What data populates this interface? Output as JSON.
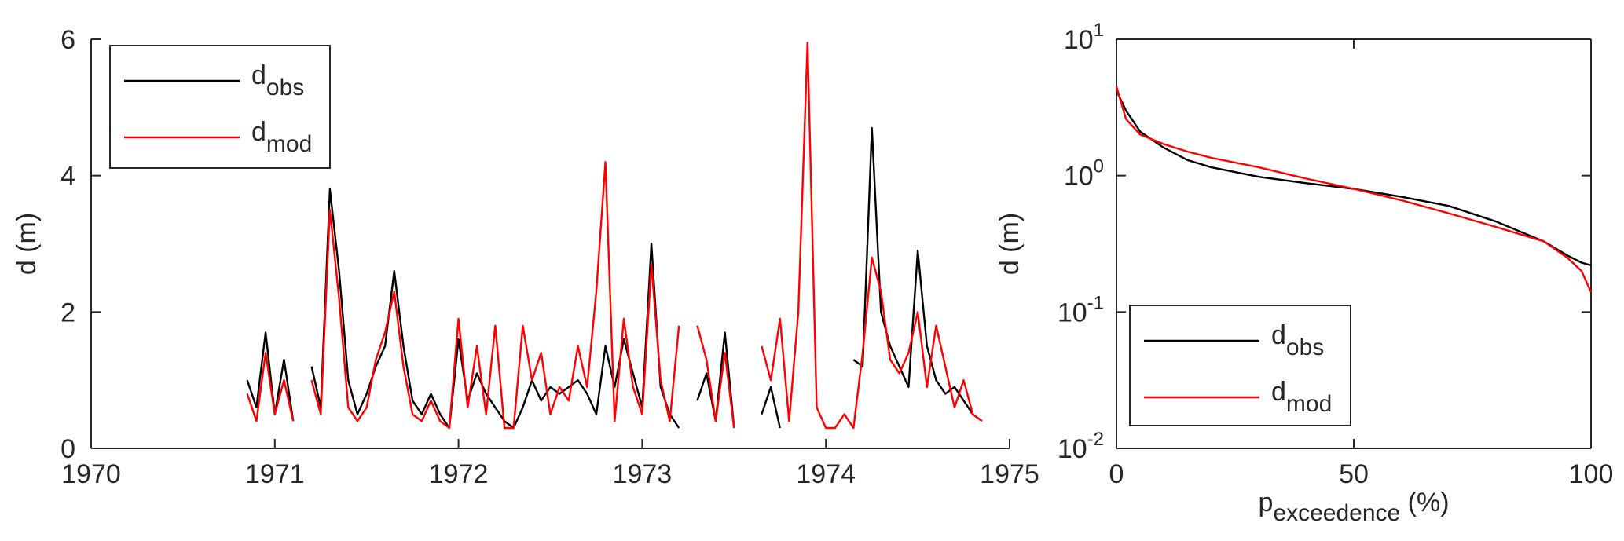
{
  "chart_data": [
    {
      "type": "line",
      "ylabel": "d (m)",
      "box": false,
      "legend": "upper left",
      "xlim": [
        1970,
        1975
      ],
      "xticks": [
        1970,
        1971,
        1972,
        1973,
        1974,
        1975
      ],
      "ylim": [
        0,
        6
      ],
      "yticks": [
        0,
        2,
        4,
        6
      ],
      "x": [
        1970.85,
        1970.9,
        1970.95,
        1971.0,
        1971.05,
        1971.1,
        1971.15,
        1971.2,
        1971.25,
        1971.3,
        1971.35,
        1971.4,
        1971.45,
        1971.5,
        1971.55,
        1971.6,
        1971.65,
        1971.7,
        1971.75,
        1971.8,
        1971.85,
        1971.9,
        1971.95,
        1972.0,
        1972.05,
        1972.1,
        1972.15,
        1972.2,
        1972.25,
        1972.3,
        1972.35,
        1972.4,
        1972.45,
        1972.5,
        1972.55,
        1972.6,
        1972.65,
        1972.7,
        1972.75,
        1972.8,
        1972.85,
        1972.9,
        1972.95,
        1973.0,
        1973.05,
        1973.1,
        1973.15,
        1973.2,
        1973.25,
        1973.3,
        1973.35,
        1973.4,
        1973.45,
        1973.5,
        1973.55,
        1973.6,
        1973.65,
        1973.7,
        1973.75,
        1973.8,
        1973.85,
        1973.9,
        1973.95,
        1974.0,
        1974.05,
        1974.1,
        1974.15,
        1974.2,
        1974.25,
        1974.3,
        1974.35,
        1974.4,
        1974.45,
        1974.5,
        1974.55,
        1974.6,
        1974.65,
        1974.7,
        1974.75,
        1974.8,
        1974.85
      ],
      "series": [
        {
          "name": "d",
          "name_sub": "obs",
          "color": "#000000",
          "values": [
            1.0,
            0.6,
            1.7,
            0.5,
            1.3,
            0.4,
            null,
            1.2,
            0.6,
            3.8,
            2.6,
            1.0,
            0.5,
            0.8,
            1.2,
            1.5,
            2.6,
            1.5,
            0.7,
            0.5,
            0.8,
            0.5,
            0.3,
            1.6,
            0.7,
            1.1,
            0.8,
            0.6,
            0.4,
            0.3,
            0.6,
            1.0,
            0.7,
            0.9,
            0.8,
            0.9,
            1.0,
            0.8,
            0.5,
            1.5,
            0.9,
            1.6,
            1.1,
            0.6,
            3.0,
            0.9,
            0.5,
            0.3,
            null,
            0.7,
            1.1,
            0.4,
            1.7,
            0.3,
            null,
            null,
            0.5,
            0.9,
            0.3,
            null,
            null,
            null,
            null,
            null,
            null,
            null,
            1.3,
            1.2,
            4.7,
            2.0,
            1.5,
            1.2,
            0.9,
            2.9,
            1.5,
            1.0,
            0.8,
            0.9,
            0.7,
            0.5,
            0.4
          ]
        },
        {
          "name": "d",
          "name_sub": "mod",
          "color": "#ff0000",
          "values": [
            0.8,
            0.4,
            1.4,
            0.5,
            1.0,
            0.4,
            null,
            1.0,
            0.5,
            3.5,
            2.2,
            0.6,
            0.4,
            0.6,
            1.3,
            1.7,
            2.3,
            1.2,
            0.5,
            0.4,
            0.7,
            0.4,
            0.3,
            1.9,
            0.6,
            1.5,
            0.5,
            1.8,
            0.3,
            0.3,
            1.8,
            1.0,
            1.4,
            0.5,
            0.9,
            0.7,
            1.5,
            0.9,
            2.3,
            4.2,
            0.4,
            1.9,
            0.9,
            0.5,
            2.7,
            1.0,
            0.4,
            1.8,
            null,
            1.8,
            1.3,
            0.4,
            1.4,
            0.3,
            null,
            null,
            1.5,
            1.0,
            1.9,
            0.4,
            2.0,
            5.95,
            0.6,
            0.3,
            0.3,
            0.5,
            0.3,
            1.4,
            2.8,
            2.3,
            1.3,
            1.1,
            1.4,
            2.0,
            0.9,
            1.8,
            1.2,
            0.6,
            1.0,
            0.5,
            0.4
          ]
        }
      ]
    },
    {
      "type": "line",
      "ylabel": "d (m)",
      "xlabel": "p",
      "xlabel_sub": "exceedence",
      "xlabel_tail": " (%)",
      "box": true,
      "log_y": true,
      "legend": "lower left",
      "xlim": [
        0,
        100
      ],
      "xticks": [
        0,
        50,
        100
      ],
      "ylim": [
        0.01,
        10
      ],
      "yticks": [
        {
          "value": 0.01,
          "label": "10",
          "exponent": "-2"
        },
        {
          "value": 0.1,
          "label": "10",
          "exponent": "-1"
        },
        {
          "value": 1,
          "label": "10",
          "exponent": "0"
        },
        {
          "value": 10,
          "label": "10",
          "exponent": "1"
        }
      ],
      "x": [
        0,
        2,
        5,
        10,
        15,
        20,
        30,
        40,
        50,
        60,
        70,
        80,
        90,
        95,
        98,
        100
      ],
      "series": [
        {
          "name": "d",
          "name_sub": "obs",
          "color": "#000000",
          "values": [
            4.2,
            3.0,
            2.1,
            1.6,
            1.3,
            1.15,
            0.98,
            0.88,
            0.8,
            0.7,
            0.6,
            0.46,
            0.33,
            0.26,
            0.23,
            0.22
          ]
        },
        {
          "name": "d",
          "name_sub": "mod",
          "color": "#ff0000",
          "values": [
            4.5,
            2.6,
            2.0,
            1.7,
            1.5,
            1.35,
            1.15,
            0.95,
            0.8,
            0.66,
            0.53,
            0.42,
            0.33,
            0.25,
            0.2,
            0.14
          ]
        }
      ]
    }
  ]
}
